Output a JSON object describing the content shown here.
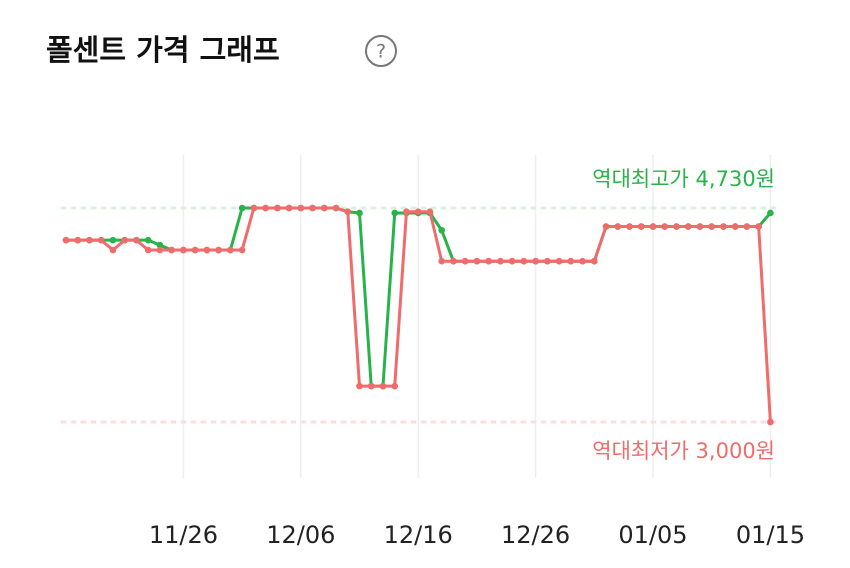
{
  "chart_data": {
    "type": "line",
    "title": "폴센트 가격 그래프",
    "help_icon": "?",
    "categories": [
      "11/16",
      "11/17",
      "11/18",
      "11/19",
      "11/20",
      "11/21",
      "11/22",
      "11/23",
      "11/24",
      "11/25",
      "11/26",
      "11/27",
      "11/28",
      "11/29",
      "11/30",
      "12/01",
      "12/02",
      "12/03",
      "12/04",
      "12/05",
      "12/06",
      "12/07",
      "12/08",
      "12/09",
      "12/10",
      "12/11",
      "12/12",
      "12/13",
      "12/14",
      "12/15",
      "12/16",
      "12/17",
      "12/18",
      "12/19",
      "12/20",
      "12/21",
      "12/22",
      "12/23",
      "12/24",
      "12/25",
      "12/26",
      "12/27",
      "12/28",
      "12/29",
      "12/30",
      "12/31",
      "01/01",
      "01/02",
      "01/03",
      "01/04",
      "01/05",
      "01/06",
      "01/07",
      "01/08",
      "01/09",
      "01/10",
      "01/11",
      "01/12",
      "01/13",
      "01/14",
      "01/15"
    ],
    "xticks": [
      "11/26",
      "12/06",
      "12/16",
      "12/26",
      "01/05",
      "01/15"
    ],
    "grid": true,
    "series": [
      {
        "color": "#27b34a",
        "values": [
          4470,
          4470,
          4470,
          4470,
          4470,
          4470,
          4470,
          4470,
          4430,
          4390,
          4390,
          4390,
          4390,
          4390,
          4390,
          4730,
          4730,
          4730,
          4730,
          4730,
          4730,
          4730,
          4730,
          4730,
          4700,
          4690,
          3290,
          3290,
          4690,
          4690,
          4690,
          4690,
          4550,
          4300,
          4300,
          4300,
          4300,
          4300,
          4300,
          4300,
          4300,
          4300,
          4300,
          4300,
          4300,
          4300,
          4580,
          4580,
          4580,
          4580,
          4580,
          4580,
          4580,
          4580,
          4580,
          4580,
          4580,
          4580,
          4580,
          4580,
          4690
        ]
      },
      {
        "color": "#f06b6b",
        "values": [
          4470,
          4470,
          4470,
          4470,
          4390,
          4470,
          4470,
          4390,
          4390,
          4390,
          4390,
          4390,
          4390,
          4390,
          4390,
          4390,
          4730,
          4730,
          4730,
          4730,
          4730,
          4730,
          4730,
          4730,
          4700,
          3290,
          3290,
          3290,
          3290,
          4700,
          4700,
          4700,
          4300,
          4300,
          4300,
          4300,
          4300,
          4300,
          4300,
          4300,
          4300,
          4300,
          4300,
          4300,
          4300,
          4300,
          4580,
          4580,
          4580,
          4580,
          4580,
          4580,
          4580,
          4580,
          4580,
          4580,
          4580,
          4580,
          4580,
          4580,
          3000
        ]
      }
    ],
    "max_label": "역대최고가 4,730원",
    "max_value": 4730,
    "max_color": "#27b34a",
    "min_label": "역대최저가 3,000원",
    "min_value": 3000,
    "min_color": "#f06b6b"
  }
}
